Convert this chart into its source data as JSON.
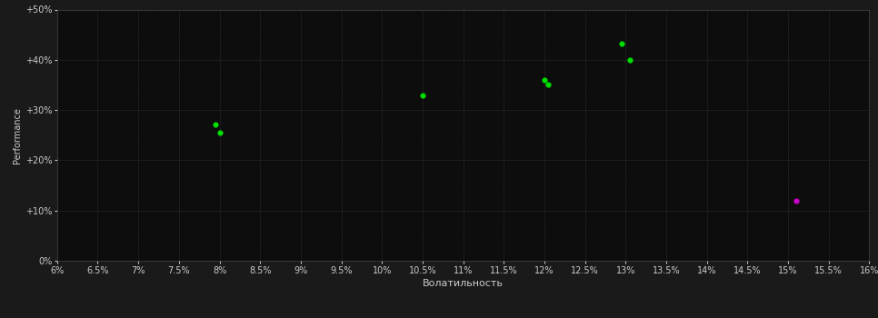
{
  "background_color": "#1a1a1a",
  "plot_bg_color": "#0d0d0d",
  "grid_color": "#333333",
  "text_color": "#cccccc",
  "xlabel": "Волатильность",
  "ylabel": "Performance",
  "xlim": [
    0.06,
    0.16
  ],
  "ylim": [
    0.0,
    0.5
  ],
  "xticks": [
    0.06,
    0.065,
    0.07,
    0.075,
    0.08,
    0.085,
    0.09,
    0.095,
    0.1,
    0.105,
    0.11,
    0.115,
    0.12,
    0.125,
    0.13,
    0.135,
    0.14,
    0.145,
    0.15,
    0.155,
    0.16
  ],
  "xtick_labels": [
    "6%",
    "6.5%",
    "7%",
    "7.5%",
    "8%",
    "8.5%",
    "9%",
    "9.5%",
    "10%",
    "10.5%",
    "11%",
    "11.5%",
    "12%",
    "12.5%",
    "13%",
    "13.5%",
    "14%",
    "14.5%",
    "15%",
    "15.5%",
    "16%"
  ],
  "yticks": [
    0.0,
    0.1,
    0.2,
    0.3,
    0.4,
    0.5
  ],
  "ytick_labels": [
    "0%",
    "+10%",
    "+20%",
    "+30%",
    "+40%",
    "+50%"
  ],
  "green_points": [
    [
      0.0795,
      0.272
    ],
    [
      0.08,
      0.255
    ],
    [
      0.105,
      0.33
    ],
    [
      0.12,
      0.36
    ],
    [
      0.1205,
      0.35
    ],
    [
      0.1295,
      0.432
    ],
    [
      0.1305,
      0.4
    ]
  ],
  "magenta_points": [
    [
      0.151,
      0.12
    ]
  ],
  "green_color": "#00dd00",
  "magenta_color": "#cc00cc",
  "point_size": 12
}
